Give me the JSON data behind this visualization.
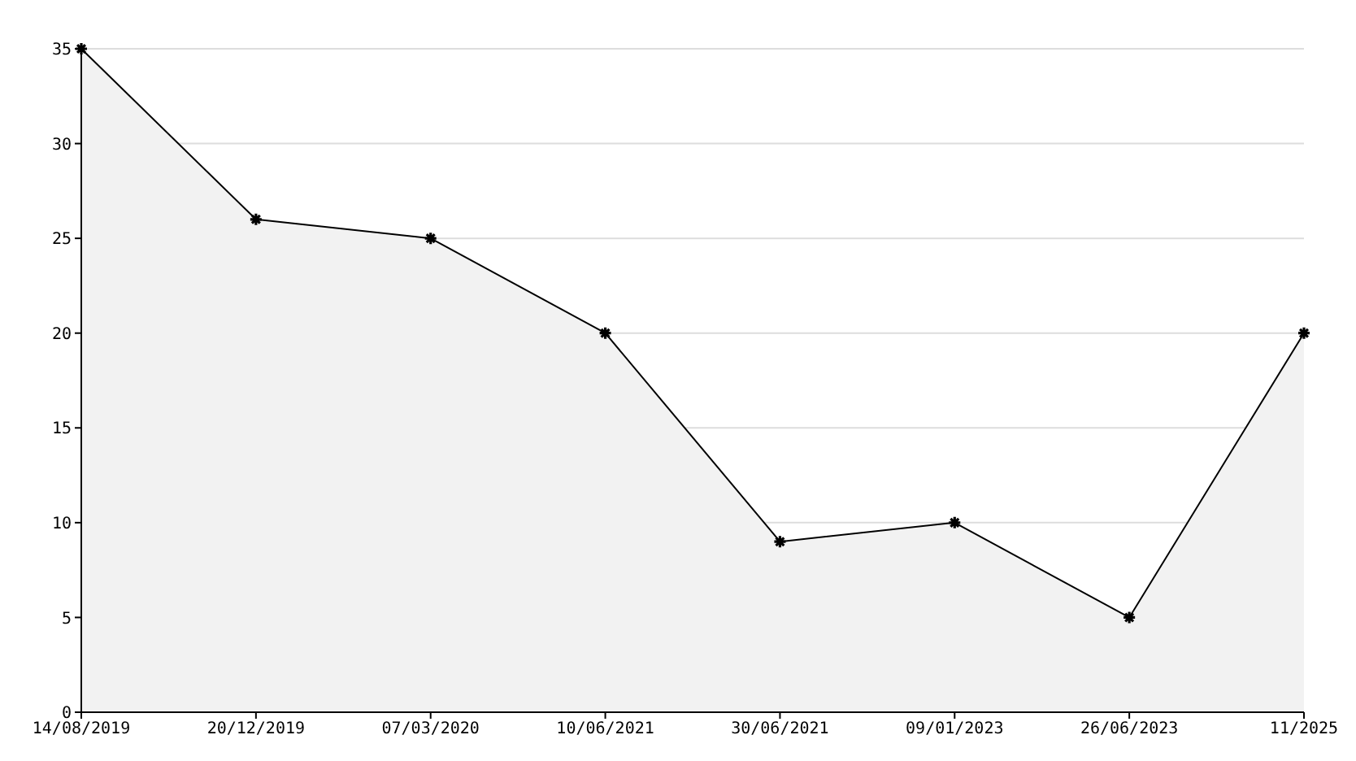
{
  "chart_data": {
    "type": "area",
    "categories": [
      "14/08/2019",
      "20/12/2019",
      "07/03/2020",
      "10/06/2021",
      "30/06/2021",
      "09/01/2023",
      "26/06/2023",
      "11/2025"
    ],
    "series": [
      {
        "color": "#000000",
        "values": [
          35,
          26,
          25,
          20,
          9,
          10,
          5,
          20
        ]
      }
    ],
    "ylim": [
      0,
      35
    ],
    "yticks": [
      0,
      5,
      10,
      15,
      20,
      25,
      30,
      35
    ],
    "grid": "y",
    "marker": "cross",
    "line_style": "solid"
  }
}
